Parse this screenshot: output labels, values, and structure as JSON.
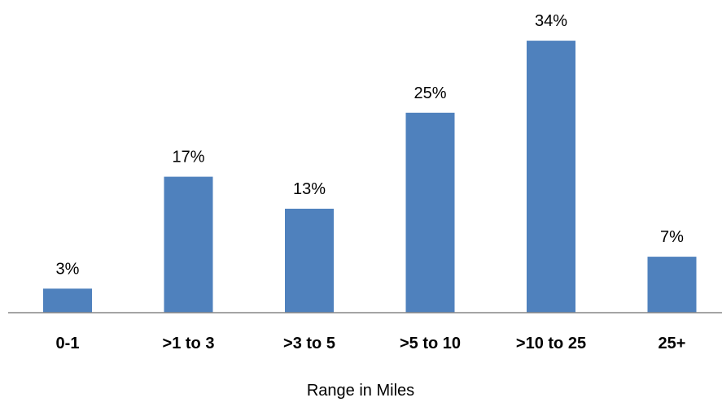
{
  "chart_data": {
    "type": "bar",
    "categories": [
      "0-1",
      ">1 to 3",
      ">3 to 5",
      ">5 to 10",
      ">10 to 25",
      "25+"
    ],
    "values": [
      3,
      17,
      13,
      25,
      34,
      7
    ],
    "data_labels": [
      "3%",
      "17%",
      "13%",
      "25%",
      "34%",
      "7%"
    ],
    "unit": "%",
    "title": "",
    "xlabel": "Range in Miles",
    "ylabel": "",
    "ylim": [
      0,
      40
    ],
    "grid": false,
    "legend": "none",
    "bar_color": "#4f81bd",
    "axis_color": "#868686"
  }
}
